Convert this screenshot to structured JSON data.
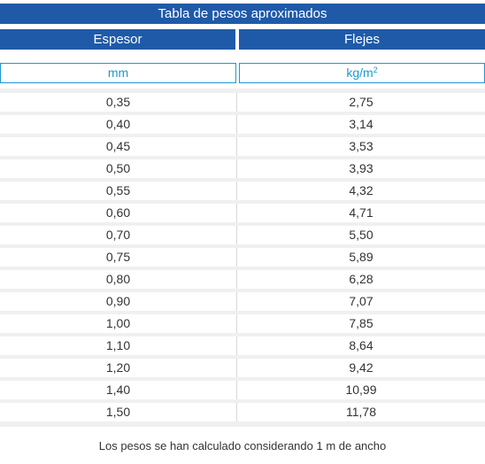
{
  "title": "Tabla de pesos aproximados",
  "headers": {
    "col1": "Espesor",
    "col2": "Flejes"
  },
  "units": {
    "col1": "mm",
    "col2_base": "kg/m",
    "col2_exp": "2"
  },
  "rows": [
    {
      "espesor": "0,35",
      "flejes": "2,75"
    },
    {
      "espesor": "0,40",
      "flejes": "3,14"
    },
    {
      "espesor": "0,45",
      "flejes": "3,53"
    },
    {
      "espesor": "0,50",
      "flejes": "3,93"
    },
    {
      "espesor": "0,55",
      "flejes": "4,32"
    },
    {
      "espesor": "0,60",
      "flejes": "4,71"
    },
    {
      "espesor": "0,70",
      "flejes": "5,50"
    },
    {
      "espesor": "0,75",
      "flejes": "5,89"
    },
    {
      "espesor": "0,80",
      "flejes": "6,28"
    },
    {
      "espesor": "0,90",
      "flejes": "7,07"
    },
    {
      "espesor": "1,00",
      "flejes": "7,85"
    },
    {
      "espesor": "1,10",
      "flejes": "8,64"
    },
    {
      "espesor": "1,20",
      "flejes": "9,42"
    },
    {
      "espesor": "1,40",
      "flejes": "10,99"
    },
    {
      "espesor": "1,50",
      "flejes": "11,78"
    }
  ],
  "footnote": "Los pesos se han calculado considerando 1 m de ancho",
  "colors": {
    "header_bg": "#1f5aa8",
    "unit_accent": "#1f98cf"
  }
}
